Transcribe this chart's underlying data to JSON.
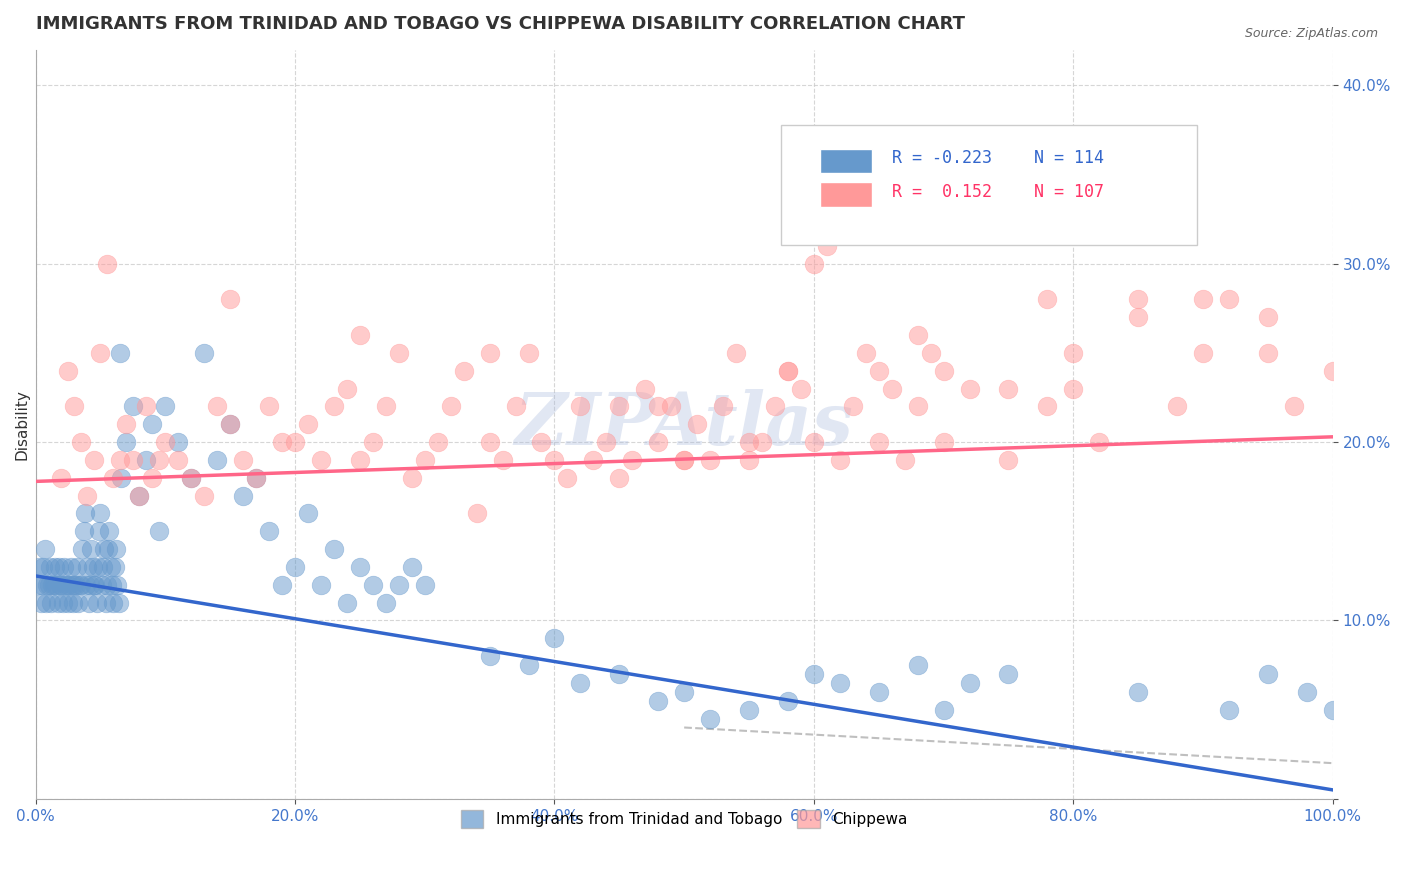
{
  "title": "IMMIGRANTS FROM TRINIDAD AND TOBAGO VS CHIPPEWA DISABILITY CORRELATION CHART",
  "source_text": "Source: ZipAtlas.com",
  "xlabel": "",
  "ylabel": "Disability",
  "xlim": [
    0.0,
    1.0
  ],
  "ylim": [
    0.0,
    0.42
  ],
  "xticks": [
    0.0,
    0.2,
    0.4,
    0.6,
    0.8,
    1.0
  ],
  "xticklabels": [
    "0.0%",
    "20.0%",
    "40.0%",
    "60.0%",
    "80.0%",
    "100.0%"
  ],
  "yticks": [
    0.0,
    0.1,
    0.2,
    0.3,
    0.4
  ],
  "yticklabels": [
    "",
    "10.0%",
    "20.0%",
    "30.0%",
    "40.0%"
  ],
  "blue_color": "#6699CC",
  "pink_color": "#FF9999",
  "blue_line_color": "#3366CC",
  "pink_line_color": "#FF6688",
  "watermark_text": "ZIPAtlas",
  "watermark_color": "#AABBDD",
  "legend_r_blue": "R = -0.223",
  "legend_n_blue": "N = 114",
  "legend_r_pink": "R =  0.152",
  "legend_n_pink": "N = 107",
  "legend_label_blue": "Immigrants from Trinidad and Tobago",
  "legend_label_pink": "Chippewa",
  "title_fontsize": 13,
  "axis_fontsize": 11,
  "tick_fontsize": 10,
  "blue_r": -0.223,
  "blue_n": 114,
  "pink_r": 0.152,
  "pink_n": 107,
  "blue_intercept": 0.125,
  "blue_slope": -0.12,
  "pink_intercept": 0.178,
  "pink_slope": 0.025,
  "blue_points_x": [
    0.002,
    0.003,
    0.004,
    0.005,
    0.006,
    0.007,
    0.008,
    0.009,
    0.01,
    0.011,
    0.012,
    0.013,
    0.014,
    0.015,
    0.016,
    0.017,
    0.018,
    0.019,
    0.02,
    0.021,
    0.022,
    0.023,
    0.024,
    0.025,
    0.026,
    0.027,
    0.028,
    0.029,
    0.03,
    0.031,
    0.032,
    0.033,
    0.034,
    0.035,
    0.036,
    0.037,
    0.038,
    0.039,
    0.04,
    0.041,
    0.042,
    0.043,
    0.044,
    0.045,
    0.046,
    0.047,
    0.048,
    0.049,
    0.05,
    0.051,
    0.052,
    0.053,
    0.054,
    0.055,
    0.056,
    0.057,
    0.058,
    0.059,
    0.06,
    0.061,
    0.062,
    0.063,
    0.064,
    0.065,
    0.066,
    0.07,
    0.075,
    0.08,
    0.085,
    0.09,
    0.095,
    0.1,
    0.11,
    0.12,
    0.13,
    0.14,
    0.15,
    0.16,
    0.17,
    0.18,
    0.19,
    0.2,
    0.21,
    0.22,
    0.23,
    0.24,
    0.25,
    0.26,
    0.27,
    0.28,
    0.29,
    0.3,
    0.35,
    0.4,
    0.45,
    0.5,
    0.55,
    0.6,
    0.65,
    0.7,
    0.75,
    0.85,
    0.92,
    0.95,
    0.98,
    1.0,
    0.38,
    0.42,
    0.48,
    0.52,
    0.58,
    0.62,
    0.68,
    0.72
  ],
  "blue_points_y": [
    0.12,
    0.13,
    0.11,
    0.12,
    0.13,
    0.14,
    0.11,
    0.12,
    0.12,
    0.13,
    0.11,
    0.12,
    0.12,
    0.13,
    0.12,
    0.11,
    0.13,
    0.12,
    0.12,
    0.11,
    0.13,
    0.12,
    0.12,
    0.11,
    0.12,
    0.13,
    0.12,
    0.11,
    0.12,
    0.12,
    0.13,
    0.11,
    0.12,
    0.12,
    0.14,
    0.15,
    0.16,
    0.12,
    0.13,
    0.11,
    0.12,
    0.14,
    0.13,
    0.12,
    0.12,
    0.11,
    0.13,
    0.15,
    0.16,
    0.12,
    0.13,
    0.14,
    0.11,
    0.12,
    0.14,
    0.15,
    0.13,
    0.12,
    0.11,
    0.13,
    0.14,
    0.12,
    0.11,
    0.25,
    0.18,
    0.2,
    0.22,
    0.17,
    0.19,
    0.21,
    0.15,
    0.22,
    0.2,
    0.18,
    0.25,
    0.19,
    0.21,
    0.17,
    0.18,
    0.15,
    0.12,
    0.13,
    0.16,
    0.12,
    0.14,
    0.11,
    0.13,
    0.12,
    0.11,
    0.12,
    0.13,
    0.12,
    0.08,
    0.09,
    0.07,
    0.06,
    0.05,
    0.07,
    0.06,
    0.05,
    0.07,
    0.06,
    0.05,
    0.07,
    0.06,
    0.05,
    0.075,
    0.065,
    0.055,
    0.045,
    0.055,
    0.065,
    0.075,
    0.065
  ],
  "pink_points_x": [
    0.02,
    0.025,
    0.03,
    0.035,
    0.04,
    0.045,
    0.05,
    0.055,
    0.06,
    0.065,
    0.07,
    0.075,
    0.08,
    0.085,
    0.09,
    0.095,
    0.1,
    0.11,
    0.12,
    0.13,
    0.14,
    0.15,
    0.16,
    0.17,
    0.18,
    0.19,
    0.2,
    0.21,
    0.22,
    0.23,
    0.24,
    0.25,
    0.26,
    0.27,
    0.28,
    0.29,
    0.3,
    0.31,
    0.32,
    0.33,
    0.34,
    0.35,
    0.36,
    0.37,
    0.38,
    0.39,
    0.4,
    0.41,
    0.42,
    0.43,
    0.44,
    0.45,
    0.46,
    0.47,
    0.48,
    0.49,
    0.5,
    0.51,
    0.52,
    0.53,
    0.54,
    0.55,
    0.56,
    0.57,
    0.58,
    0.59,
    0.6,
    0.61,
    0.62,
    0.63,
    0.64,
    0.65,
    0.66,
    0.67,
    0.68,
    0.69,
    0.7,
    0.72,
    0.75,
    0.78,
    0.8,
    0.82,
    0.85,
    0.88,
    0.9,
    0.92,
    0.95,
    0.97,
    1.0,
    0.15,
    0.25,
    0.35,
    0.45,
    0.55,
    0.65,
    0.75,
    0.85,
    0.95,
    0.5,
    0.6,
    0.7,
    0.8,
    0.9,
    0.48,
    0.58,
    0.68,
    0.78
  ],
  "pink_points_y": [
    0.18,
    0.24,
    0.22,
    0.2,
    0.17,
    0.19,
    0.25,
    0.3,
    0.18,
    0.19,
    0.21,
    0.19,
    0.17,
    0.22,
    0.18,
    0.19,
    0.2,
    0.19,
    0.18,
    0.17,
    0.22,
    0.21,
    0.19,
    0.18,
    0.22,
    0.2,
    0.2,
    0.21,
    0.19,
    0.22,
    0.23,
    0.19,
    0.2,
    0.22,
    0.25,
    0.18,
    0.19,
    0.2,
    0.22,
    0.24,
    0.16,
    0.2,
    0.19,
    0.22,
    0.25,
    0.2,
    0.19,
    0.18,
    0.22,
    0.19,
    0.2,
    0.22,
    0.19,
    0.23,
    0.2,
    0.22,
    0.19,
    0.21,
    0.19,
    0.22,
    0.25,
    0.19,
    0.2,
    0.22,
    0.24,
    0.23,
    0.3,
    0.31,
    0.19,
    0.22,
    0.25,
    0.2,
    0.23,
    0.19,
    0.22,
    0.25,
    0.2,
    0.23,
    0.19,
    0.22,
    0.25,
    0.2,
    0.27,
    0.22,
    0.25,
    0.28,
    0.27,
    0.22,
    0.24,
    0.28,
    0.26,
    0.25,
    0.18,
    0.2,
    0.24,
    0.23,
    0.28,
    0.25,
    0.19,
    0.2,
    0.24,
    0.23,
    0.28,
    0.22,
    0.24,
    0.26,
    0.28
  ]
}
